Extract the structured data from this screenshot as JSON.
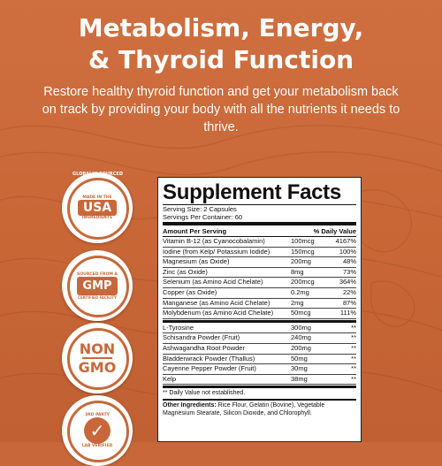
{
  "header": {
    "title_line1": "Metabolism, Energy,",
    "title_line2": "& Thyroid Function",
    "subtitle": "Restore healthy thyroid function and get your metabolism back on track by providing your body with all the nutrients it needs to thrive."
  },
  "badges": [
    {
      "icon": "usa-badge-icon",
      "top_text": "GLOBALLY SOURCED",
      "main": "USA",
      "sub": "MADE IN THE",
      "bottom_text": "INGREDIENTS"
    },
    {
      "icon": "gmp-badge-icon",
      "top_text": "SOURCED FROM A",
      "main": "GMP",
      "bottom_text": "CERTIFIED FACILITY"
    },
    {
      "icon": "non-gmo-badge-icon",
      "line1": "NON",
      "line2": "GMO"
    },
    {
      "icon": "third-party-badge-icon",
      "top_text": "3RD PARTY",
      "bottom_text": "LAB VERIFIED"
    }
  ],
  "facts": {
    "title": "Supplement Facts",
    "serving_size": "Serving Size: 2 Capsules",
    "servings_per_container": "Servings Per Container: 60",
    "col_amount": "Amount Per Serving",
    "col_dv": "% Daily Value",
    "rows": [
      {
        "name": "Vitamin B-12 (as Cyanocobalamin)",
        "amount": "100mcg",
        "dv": "4167%"
      },
      {
        "name": "Iodine (from Kelp/ Potassium Iodide)",
        "amount": "150mcg",
        "dv": "100%"
      },
      {
        "name": "Magnesium (as Oxide)",
        "amount": "200mg",
        "dv": "48%"
      },
      {
        "name": "Zinc (as Oxide)",
        "amount": "8mg",
        "dv": "73%"
      },
      {
        "name": "Selenium (as Amino Acid Chelate)",
        "amount": "200mcg",
        "dv": "364%"
      },
      {
        "name": "Copper (as Oxide)",
        "amount": "0.2mg",
        "dv": "22%"
      },
      {
        "name": "Manganese (as Amino Acid Chelate)",
        "amount": "2mg",
        "dv": "87%"
      },
      {
        "name": "Molybdenum (as Amino Acid Chelate)",
        "amount": "50mcg",
        "dv": "111%"
      }
    ],
    "rows2": [
      {
        "name": "L-Tyrosine",
        "amount": "300mg",
        "dv": "**"
      },
      {
        "name": "Schisandra Powder (Fruit)",
        "amount": "240mg",
        "dv": "**"
      },
      {
        "name": "Ashwagandha Root Powder",
        "amount": "200mg",
        "dv": "**"
      },
      {
        "name": "Bladderwrack Powder (Thallus)",
        "amount": "50mg",
        "dv": "**"
      },
      {
        "name": "Cayenne Pepper Powder (Fruit)",
        "amount": "30mg",
        "dv": "**"
      },
      {
        "name": "Kelp",
        "amount": "38mg",
        "dv": "**"
      }
    ],
    "footnote": "** Daily Value not established.",
    "other_label": "Other Ingredients:",
    "other_text": "Rice Flour, Gelatin (Bovine), Vegetable Magnesium Stearate, Silicon Dioxide, and Chlorophyll."
  },
  "colors": {
    "brand": "#c8683a",
    "text": "#ffffff"
  }
}
